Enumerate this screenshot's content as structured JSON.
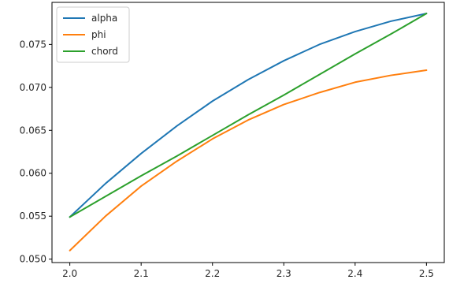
{
  "chart_data": {
    "type": "line",
    "title": "",
    "xlabel": "",
    "ylabel": "",
    "xlim": [
      1.975,
      2.525
    ],
    "ylim": [
      0.0496,
      0.0799
    ],
    "grid": false,
    "legend_position": "top-left",
    "x_ticks": [
      2.0,
      2.1,
      2.2,
      2.3,
      2.4,
      2.5
    ],
    "x_tick_labels": [
      "2.0",
      "2.1",
      "2.2",
      "2.3",
      "2.4",
      "2.5"
    ],
    "y_ticks": [
      0.05,
      0.055,
      0.06,
      0.065,
      0.07,
      0.075
    ],
    "y_tick_labels": [
      "0.050",
      "0.055",
      "0.060",
      "0.065",
      "0.070",
      "0.075"
    ],
    "x": [
      2.0,
      2.05,
      2.1,
      2.15,
      2.2,
      2.25,
      2.3,
      2.35,
      2.4,
      2.45,
      2.5
    ],
    "series": [
      {
        "name": "alpha",
        "color": "#1f77b4",
        "values": [
          0.0549,
          0.0588,
          0.0623,
          0.0655,
          0.0684,
          0.0709,
          0.0731,
          0.075,
          0.0765,
          0.0777,
          0.0786
        ]
      },
      {
        "name": "phi",
        "color": "#ff7f0e",
        "values": [
          0.051,
          0.055,
          0.0585,
          0.0614,
          0.064,
          0.0662,
          0.068,
          0.0694,
          0.0706,
          0.0714,
          0.072
        ]
      },
      {
        "name": "chord",
        "color": "#2ca02c",
        "values": [
          0.0549,
          0.0573,
          0.0597,
          0.062,
          0.0644,
          0.0668,
          0.0691,
          0.0715,
          0.0739,
          0.0762,
          0.0786
        ]
      }
    ]
  }
}
